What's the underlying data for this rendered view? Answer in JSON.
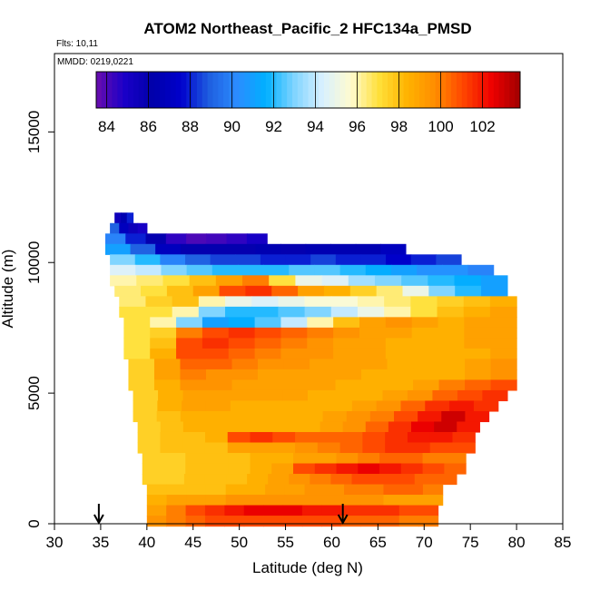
{
  "chart_data": {
    "type": "heatmap",
    "title": "ATOM2 Northeast_Pacific_2 HFC134a_PMSD",
    "flights_note": "Flts: 10,11",
    "date_note": "MMDD: 0219,0221",
    "xlabel": "Latitude (deg N)",
    "ylabel": "Altitude (m)",
    "xlim": [
      30,
      85
    ],
    "ylim": [
      0,
      18000
    ],
    "x_ticks": [
      30,
      35,
      40,
      45,
      50,
      55,
      60,
      65,
      70,
      75,
      80,
      85
    ],
    "y_ticks": [
      0,
      5000,
      10000,
      15000
    ],
    "colorbar": {
      "min": 83.5,
      "max": 103.8,
      "ticks": [
        84,
        86,
        88,
        90,
        92,
        94,
        96,
        98,
        100,
        102
      ],
      "stops": [
        "#6a0dad",
        "#1a00c8",
        "#0000aa",
        "#0000cc",
        "#1f5fe0",
        "#2b8cff",
        "#00b0ff",
        "#7fd4ff",
        "#d8f0ff",
        "#fffbd0",
        "#ffe03a",
        "#ffb300",
        "#ff8c00",
        "#ff4500",
        "#ee0000",
        "#a00000"
      ]
    },
    "arrows_latitude": [
      34.8,
      61.2
    ],
    "rows": [
      {
        "alt": 11700,
        "lat_start": 36.5,
        "lat_end": 38.5,
        "values": [
          85.5,
          86.5,
          88
        ]
      },
      {
        "alt": 11300,
        "lat_start": 36,
        "lat_end": 40,
        "values": [
          89,
          87,
          85.5,
          85
        ]
      },
      {
        "alt": 10900,
        "lat_start": 35.5,
        "lat_end": 53,
        "values": [
          90,
          88,
          86,
          84.5,
          84,
          84.2,
          84.5,
          85
        ]
      },
      {
        "alt": 10500,
        "lat_start": 35.5,
        "lat_end": 68,
        "values": [
          91,
          89,
          87,
          86,
          86,
          86,
          86.5,
          86,
          86.5,
          86.5,
          86.5,
          87
        ]
      },
      {
        "alt": 10100,
        "lat_start": 36,
        "lat_end": 74,
        "values": [
          93,
          92,
          90,
          89,
          88.5,
          88.5,
          88,
          88,
          88.5,
          88,
          88,
          87.5,
          88,
          88.5
        ]
      },
      {
        "alt": 9700,
        "lat_start": 36,
        "lat_end": 77.5,
        "values": [
          94.5,
          94,
          93,
          92.5,
          92,
          92,
          92,
          92.5,
          92.5,
          92,
          91.5,
          91,
          90.5,
          90.5,
          90
        ]
      },
      {
        "alt": 9300,
        "lat_start": 36,
        "lat_end": 79,
        "values": [
          96,
          96.5,
          97,
          98,
          99,
          100,
          97,
          95,
          94.5,
          93.5,
          93,
          92.5,
          92,
          91.5,
          91
        ]
      },
      {
        "alt": 8900,
        "lat_start": 36.5,
        "lat_end": 79,
        "values": [
          96.5,
          97,
          98,
          99,
          101,
          101.5,
          100.5,
          99,
          98.5,
          97.5,
          96.5,
          95,
          93,
          92,
          91
        ]
      },
      {
        "alt": 8500,
        "lat_start": 37,
        "lat_end": 80,
        "values": [
          96.5,
          97.5,
          98,
          96,
          95,
          94.5,
          95,
          95.5,
          95.5,
          96,
          96.5,
          97,
          97.5,
          98,
          98.5
        ]
      },
      {
        "alt": 8100,
        "lat_start": 37,
        "lat_end": 80,
        "values": [
          97,
          97,
          96,
          93,
          92,
          92,
          92.5,
          93,
          94,
          95,
          96,
          97,
          98,
          98.5,
          99
        ]
      },
      {
        "alt": 7700,
        "lat_start": 37.5,
        "lat_end": 80,
        "values": [
          97,
          96,
          93,
          91,
          91.5,
          92.5,
          94,
          96,
          98,
          99,
          99.5,
          99,
          98.5,
          99,
          99
        ]
      },
      {
        "alt": 7300,
        "lat_start": 37.5,
        "lat_end": 80,
        "values": [
          97,
          97.5,
          100,
          101,
          101.5,
          101,
          100.5,
          100,
          99.5,
          99,
          99,
          98.5,
          98.5,
          99,
          99
        ]
      },
      {
        "alt": 6900,
        "lat_start": 37.5,
        "lat_end": 80,
        "values": [
          97,
          98,
          101,
          101.5,
          101,
          100.5,
          100,
          99.5,
          99,
          99,
          98.5,
          98.5,
          98.5,
          99,
          99
        ]
      },
      {
        "alt": 6500,
        "lat_start": 37.5,
        "lat_end": 80,
        "values": [
          97,
          98.5,
          101,
          101,
          100.5,
          100,
          99.5,
          99.5,
          99,
          99,
          98.5,
          98.5,
          98.5,
          98.5,
          99
        ]
      },
      {
        "alt": 6100,
        "lat_start": 38,
        "lat_end": 80,
        "values": [
          97.5,
          99,
          100.5,
          100.5,
          100,
          99.5,
          99.5,
          99,
          99,
          99,
          98.5,
          98.5,
          98.5,
          99,
          99.5
        ]
      },
      {
        "alt": 5700,
        "lat_start": 38,
        "lat_end": 80,
        "values": [
          97.5,
          99,
          100,
          99.5,
          99.5,
          99,
          99,
          99,
          99,
          98.5,
          98.5,
          98.5,
          98.5,
          99,
          99.5
        ]
      },
      {
        "alt": 5300,
        "lat_start": 38,
        "lat_end": 80,
        "values": [
          97.5,
          98.5,
          99.5,
          99.5,
          99,
          99,
          99,
          99,
          98.5,
          98.5,
          98.5,
          99,
          100,
          100.5,
          101
        ]
      },
      {
        "alt": 4900,
        "lat_start": 38.5,
        "lat_end": 79,
        "values": [
          97.5,
          98.5,
          99,
          99,
          99,
          99,
          99,
          98.5,
          98.5,
          98.5,
          99,
          99.5,
          100.5,
          101,
          101.5
        ]
      },
      {
        "alt": 4500,
        "lat_start": 38.5,
        "lat_end": 78,
        "values": [
          97.5,
          98.5,
          99,
          99,
          98.5,
          98.5,
          98.5,
          98.5,
          98.5,
          99,
          99.5,
          100.5,
          101.5,
          102,
          101.5
        ]
      },
      {
        "alt": 4100,
        "lat_start": 38.5,
        "lat_end": 77,
        "values": [
          97.5,
          98,
          98.5,
          98.5,
          98.5,
          98.5,
          98.5,
          98.5,
          99,
          99.5,
          100,
          101,
          102,
          103,
          102
        ]
      },
      {
        "alt": 3700,
        "lat_start": 39,
        "lat_end": 76,
        "values": [
          97.5,
          98,
          98.5,
          98.5,
          98.5,
          98.5,
          98.5,
          98.5,
          99,
          99.5,
          100.5,
          101.5,
          102.5,
          103,
          102
        ]
      },
      {
        "alt": 3300,
        "lat_start": 39,
        "lat_end": 75.5,
        "values": [
          97.5,
          98,
          98,
          98.5,
          101,
          101.5,
          101,
          100.5,
          100.5,
          100.5,
          101,
          101.5,
          102,
          102,
          101.5
        ]
      },
      {
        "alt": 2900,
        "lat_start": 39,
        "lat_end": 75.5,
        "values": [
          97.5,
          98,
          98,
          98,
          99,
          99,
          99,
          99.5,
          100,
          100.5,
          101,
          101.5,
          101.5,
          101,
          101
        ]
      },
      {
        "alt": 2500,
        "lat_start": 39.5,
        "lat_end": 74.5,
        "values": [
          97.5,
          97.5,
          98,
          98,
          98,
          98.5,
          98.5,
          99,
          99,
          99.5,
          100,
          100.5,
          100.5,
          100,
          100
        ]
      },
      {
        "alt": 2100,
        "lat_start": 39.5,
        "lat_end": 74.5,
        "values": [
          97.5,
          97.5,
          98,
          98,
          98,
          98.5,
          99,
          101,
          101.5,
          102,
          102.5,
          102,
          101.5,
          101,
          100.5
        ]
      },
      {
        "alt": 1700,
        "lat_start": 39.5,
        "lat_end": 73.5,
        "values": [
          97.5,
          97.5,
          98,
          98,
          98,
          98.5,
          99,
          99.5,
          100,
          100.5,
          101,
          101,
          101,
          100.5,
          100.5
        ]
      },
      {
        "alt": 1300,
        "lat_start": 40,
        "lat_end": 72,
        "values": [
          98,
          98,
          98,
          98,
          98.5,
          98.5,
          99,
          99,
          99.5,
          99.5,
          100,
          100,
          100.5,
          100.5,
          100
        ]
      },
      {
        "alt": 900,
        "lat_start": 40,
        "lat_end": 72,
        "values": [
          98.5,
          99,
          99,
          99,
          99.5,
          99.5,
          99.5,
          99.5,
          99.5,
          99.5,
          99.5,
          99.5,
          99,
          99,
          99
        ]
      },
      {
        "alt": 500,
        "lat_start": 40,
        "lat_end": 71.5,
        "values": [
          99,
          100,
          101,
          101.5,
          102,
          102.5,
          102.5,
          102.5,
          102,
          102,
          101.5,
          101.5,
          101.5,
          101,
          101
        ]
      },
      {
        "alt": 100,
        "lat_start": 40,
        "lat_end": 71.5,
        "values": [
          99.5,
          100,
          100.5,
          101,
          101,
          101,
          101,
          101,
          101,
          101,
          100.5,
          100.5,
          100.5,
          100,
          100
        ]
      }
    ]
  }
}
